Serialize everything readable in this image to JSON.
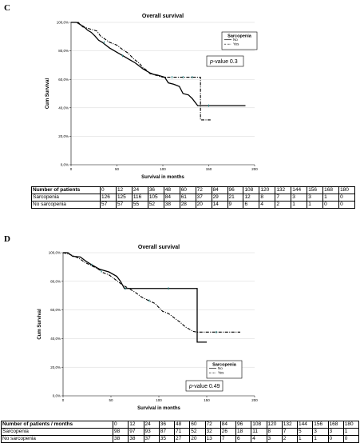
{
  "panels": [
    {
      "letter": "C",
      "chart_data": {
        "type": "line",
        "title": "Overall survival",
        "xlabel": "Survival in months",
        "ylabel": "Cum Survival",
        "xlim": [
          0,
          200
        ],
        "ylim": [
          0,
          1
        ],
        "xticks": [
          0,
          50,
          100,
          150,
          200
        ],
        "xtick_labels": [
          "0",
          "50",
          "100",
          "150",
          "200"
        ],
        "yticks": [
          0,
          0.2,
          0.4,
          0.6,
          0.8,
          1.0
        ],
        "ytick_labels": [
          "0,0%",
          "20,0%",
          "40,0%",
          "60,0%",
          "80,0%",
          "100,0%"
        ],
        "legend": {
          "title": "Sarcopenia",
          "position": "top-right",
          "items": [
            "No",
            "Yes"
          ]
        },
        "annotation": "p-value 0.3",
        "series": [
          {
            "style": "dashdot",
            "points": [
              [
                0,
                1.0
              ],
              [
                8,
                1.0
              ],
              [
                12,
                0.97
              ],
              [
                20,
                0.955
              ],
              [
                28,
                0.94
              ],
              [
                32,
                0.905
              ],
              [
                42,
                0.86
              ],
              [
                50,
                0.84
              ],
              [
                56,
                0.81
              ],
              [
                62,
                0.785
              ],
              [
                68,
                0.745
              ],
              [
                74,
                0.715
              ],
              [
                78,
                0.685
              ],
              [
                82,
                0.665
              ],
              [
                86,
                0.64
              ],
              [
                100,
                0.615
              ],
              [
                110,
                0.615
              ],
              [
                112,
                0.615
              ],
              [
                122,
                0.615
              ],
              [
                124,
                0.615
              ],
              [
                132,
                0.615
              ],
              [
                136,
                0.615
              ],
              [
                141,
                0.615
              ],
              [
                141,
                0.315
              ],
              [
                152,
                0.315
              ]
            ],
            "censor": [
              [
                110,
                0.615
              ],
              [
                122,
                0.615
              ],
              [
                132,
                0.615
              ]
            ]
          },
          {
            "style": "solid",
            "points": [
              [
                0,
                1.0
              ],
              [
                6,
                1.0
              ],
              [
                10,
                0.985
              ],
              [
                14,
                0.97
              ],
              [
                18,
                0.945
              ],
              [
                22,
                0.93
              ],
              [
                26,
                0.905
              ],
              [
                30,
                0.875
              ],
              [
                34,
                0.86
              ],
              [
                38,
                0.84
              ],
              [
                42,
                0.82
              ],
              [
                46,
                0.805
              ],
              [
                50,
                0.79
              ],
              [
                54,
                0.775
              ],
              [
                58,
                0.76
              ],
              [
                62,
                0.745
              ],
              [
                66,
                0.73
              ],
              [
                70,
                0.715
              ],
              [
                74,
                0.695
              ],
              [
                78,
                0.675
              ],
              [
                82,
                0.66
              ],
              [
                86,
                0.645
              ],
              [
                90,
                0.635
              ],
              [
                94,
                0.63
              ],
              [
                102,
                0.615
              ],
              [
                106,
                0.575
              ],
              [
                112,
                0.565
              ],
              [
                118,
                0.55
              ],
              [
                122,
                0.5
              ],
              [
                128,
                0.49
              ],
              [
                132,
                0.465
              ],
              [
                138,
                0.415
              ],
              [
                145,
                0.415
              ],
              [
                150,
                0.415
              ],
              [
                160,
                0.415
              ],
              [
                190,
                0.415
              ]
            ],
            "censor": [
              [
                36,
                0.86
              ],
              [
                56,
                0.765
              ],
              [
                150,
                0.415
              ]
            ]
          }
        ]
      },
      "risk_table": {
        "header": [
          "Number of patients",
          "0",
          "12",
          "24",
          "36",
          "48",
          "60",
          "72",
          "84",
          "96",
          "108",
          "120",
          "132",
          "144",
          "156",
          "168",
          "180"
        ],
        "rows": [
          [
            "Sarcopenia",
            "126",
            "125",
            "116",
            "105",
            "84",
            "61",
            "37",
            "29",
            "21",
            "12",
            "8",
            "7",
            "3",
            "3",
            "1",
            "0"
          ],
          [
            "No sarcopenia",
            "57",
            "57",
            "55",
            "52",
            "38",
            "28",
            "20",
            "14",
            "9",
            "6",
            "4",
            "2",
            "1",
            "1",
            "0",
            "0"
          ]
        ]
      }
    },
    {
      "letter": "D",
      "chart_data": {
        "type": "line",
        "title": "Overall survival",
        "xlabel": "Survival in months",
        "ylabel": "Cum Survival",
        "xlim": [
          0,
          200
        ],
        "ylim": [
          0,
          1
        ],
        "xticks": [
          0,
          50,
          100,
          150,
          200
        ],
        "xtick_labels": [
          "0",
          "50",
          "100",
          "150",
          "200"
        ],
        "yticks": [
          0,
          0.2,
          0.4,
          0.6,
          0.8,
          1.0
        ],
        "ytick_labels": [
          "0,0%",
          "20,0%",
          "40,0%",
          "60,0%",
          "80,0%",
          "100,0%"
        ],
        "legend": {
          "title": "Sarcopenia",
          "position": "bottom-right",
          "items": [
            "No",
            "Yes"
          ]
        },
        "annotation": "p-value 0.49",
        "series": [
          {
            "style": "solid",
            "points": [
              [
                0,
                1.0
              ],
              [
                5,
                1.0
              ],
              [
                10,
                0.975
              ],
              [
                18,
                0.97
              ],
              [
                24,
                0.94
              ],
              [
                30,
                0.915
              ],
              [
                38,
                0.885
              ],
              [
                48,
                0.865
              ],
              [
                56,
                0.835
              ],
              [
                60,
                0.8
              ],
              [
                64,
                0.75
              ],
              [
                70,
                0.75
              ],
              [
                100,
                0.75
              ],
              [
                130,
                0.75
              ],
              [
                140,
                0.75
              ],
              [
                140,
                0.375
              ],
              [
                150,
                0.375
              ]
            ],
            "censor": [
              [
                30,
                0.915
              ],
              [
                65,
                0.75
              ],
              [
                110,
                0.75
              ]
            ]
          },
          {
            "style": "dashdot",
            "points": [
              [
                0,
                1.0
              ],
              [
                6,
                0.99
              ],
              [
                12,
                0.975
              ],
              [
                18,
                0.955
              ],
              [
                22,
                0.935
              ],
              [
                28,
                0.915
              ],
              [
                34,
                0.895
              ],
              [
                38,
                0.88
              ],
              [
                42,
                0.86
              ],
              [
                48,
                0.845
              ],
              [
                52,
                0.825
              ],
              [
                58,
                0.795
              ],
              [
                62,
                0.775
              ],
              [
                66,
                0.76
              ],
              [
                70,
                0.745
              ],
              [
                76,
                0.72
              ],
              [
                82,
                0.69
              ],
              [
                88,
                0.67
              ],
              [
                96,
                0.645
              ],
              [
                104,
                0.59
              ],
              [
                110,
                0.575
              ],
              [
                116,
                0.545
              ],
              [
                122,
                0.515
              ],
              [
                128,
                0.48
              ],
              [
                136,
                0.45
              ],
              [
                140,
                0.445
              ],
              [
                160,
                0.445
              ],
              [
                180,
                0.445
              ],
              [
                185,
                0.445
              ]
            ],
            "censor": [
              [
                40,
                0.87
              ],
              [
                90,
                0.665
              ],
              [
                160,
                0.445
              ]
            ]
          }
        ]
      },
      "risk_table": {
        "header": [
          "Number of patients / months",
          "0",
          "12",
          "24",
          "36",
          "48",
          "60",
          "72",
          "84",
          "96",
          "108",
          "120",
          "132",
          "144",
          "156",
          "168",
          "180"
        ],
        "rows": [
          [
            "Sarcopenia",
            "98",
            "97",
            "93",
            "87",
            "71",
            "52",
            "32",
            "26",
            "18",
            "11",
            "8",
            "7",
            "5",
            "3",
            "3",
            "1"
          ],
          [
            "No sarcopenia",
            "38",
            "38",
            "37",
            "35",
            "27",
            "20",
            "13",
            "7",
            "6",
            "4",
            "3",
            "2",
            "1",
            "1",
            "0",
            "0"
          ]
        ]
      }
    }
  ]
}
